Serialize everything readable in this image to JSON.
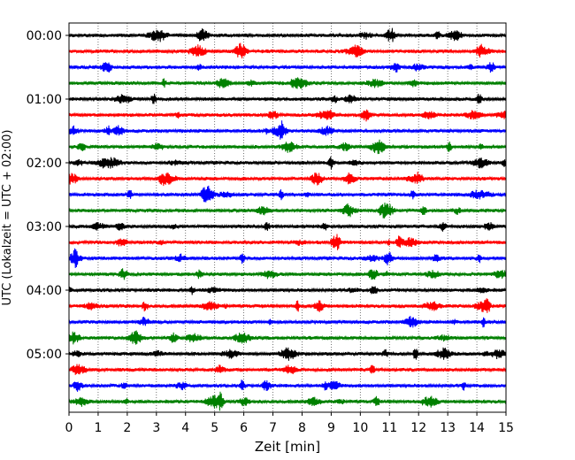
{
  "chart_data": {
    "type": "line",
    "title": "",
    "xlabel": "Zeit  [min]",
    "ylabel": "UTC (Lokalzeit = UTC + 02:00)",
    "xlim": [
      0,
      15
    ],
    "x_ticks": [
      "0",
      "1",
      "2",
      "3",
      "4",
      "5",
      "6",
      "7",
      "8",
      "9",
      "10",
      "11",
      "12",
      "13",
      "14",
      "15"
    ],
    "y_ticks": [
      "00:00",
      "01:00",
      "02:00",
      "03:00",
      "04:00",
      "05:00"
    ],
    "minutes_per_trace": 15,
    "trace_count": 24,
    "color_cycle": [
      "#000000",
      "#ff0000",
      "#0000ff",
      "#008000"
    ],
    "grid": "vertical dotted lines at each minute",
    "legend": "none"
  }
}
